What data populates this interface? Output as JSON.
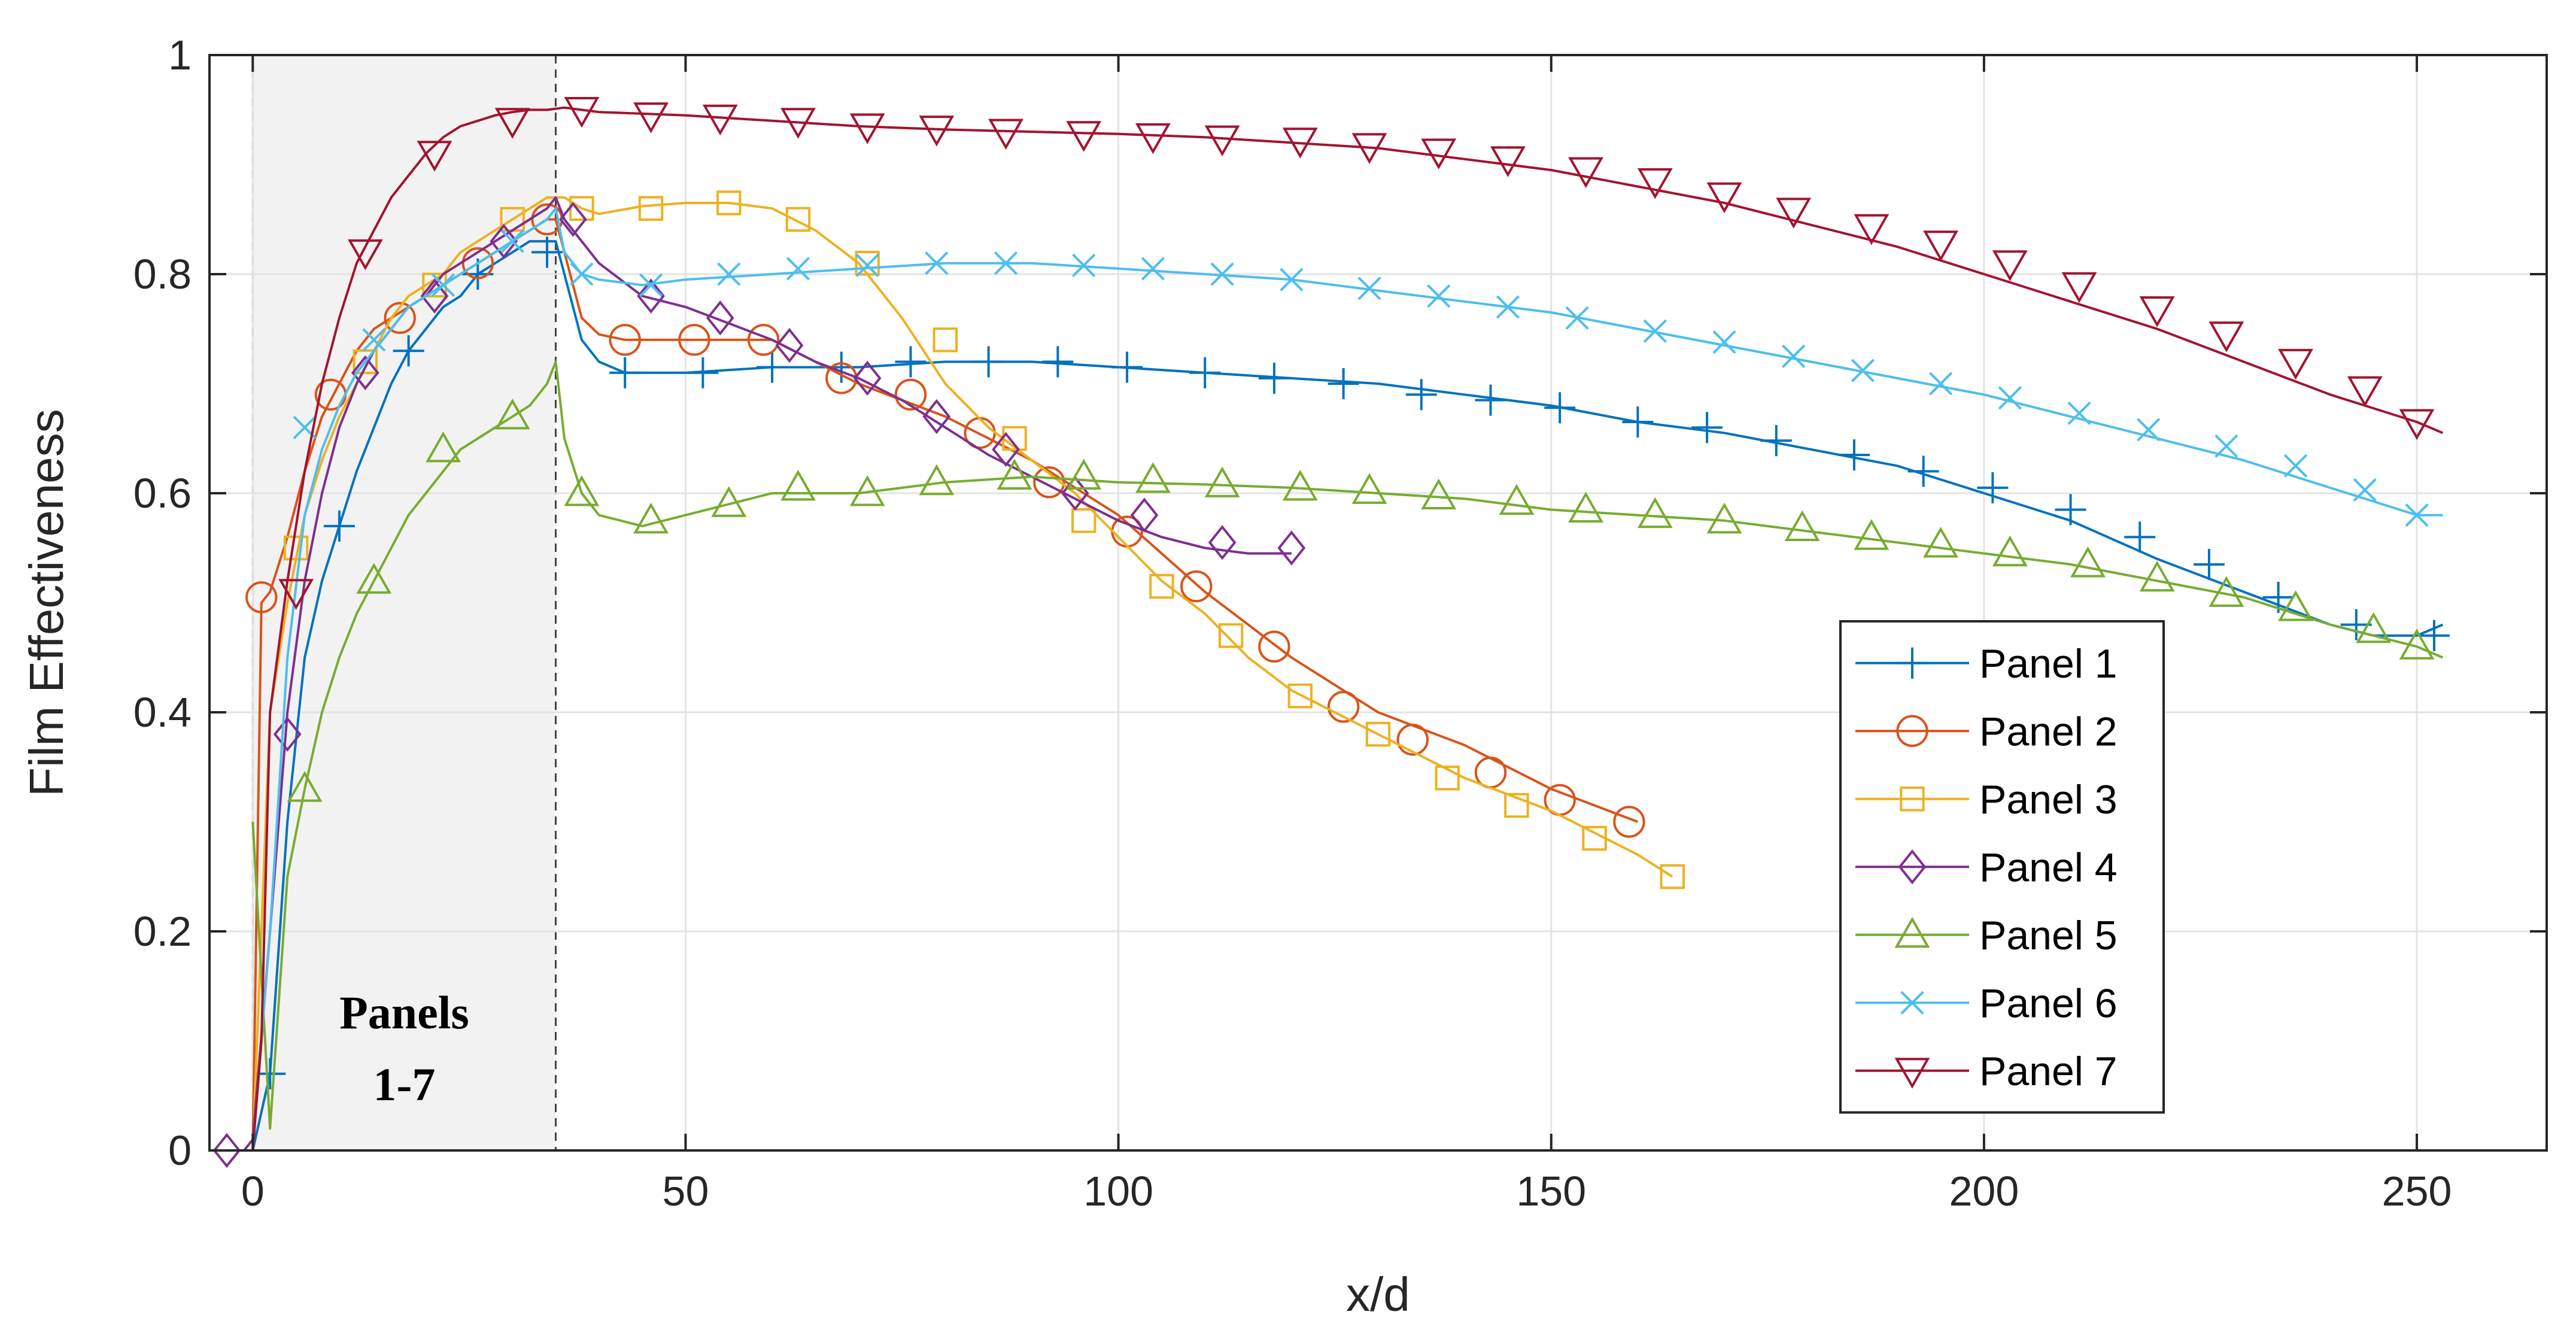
{
  "chart_data": {
    "type": "line",
    "title": "",
    "xlabel": "x/d",
    "ylabel": "Film Effectiveness",
    "xlim": [
      -5,
      265
    ],
    "ylim": [
      0,
      1
    ],
    "xticks": [
      0,
      50,
      100,
      150,
      200,
      250
    ],
    "yticks": [
      0,
      0.2,
      0.4,
      0.6,
      0.8,
      1
    ],
    "xtick_labels": [
      "0",
      "50",
      "100",
      "150",
      "200",
      "250"
    ],
    "ytick_labels": [
      "0",
      "0.2",
      "0.4",
      "0.6",
      "0.8",
      "1"
    ],
    "grid": true,
    "legend_position": "lower-right",
    "shaded_region": {
      "x_start": 0,
      "x_end": 35,
      "label_line1": "Panels",
      "label_line2": "1-7"
    },
    "series": [
      {
        "name": "Panel 1",
        "color": "#0072BD",
        "marker": "plus",
        "x": [
          0,
          2,
          4,
          6,
          8,
          10,
          12,
          14,
          16,
          18,
          20,
          22,
          24,
          26,
          28,
          30,
          32,
          34,
          35,
          36,
          38,
          40,
          43,
          50,
          60,
          70,
          80,
          90,
          100,
          110,
          120,
          130,
          140,
          150,
          160,
          170,
          180,
          190,
          200,
          210,
          220,
          230,
          240,
          245,
          250,
          253
        ],
        "y": [
          0,
          0.07,
          0.3,
          0.45,
          0.52,
          0.57,
          0.62,
          0.66,
          0.7,
          0.73,
          0.75,
          0.77,
          0.78,
          0.8,
          0.81,
          0.82,
          0.83,
          0.83,
          0.83,
          0.8,
          0.74,
          0.72,
          0.71,
          0.71,
          0.715,
          0.715,
          0.72,
          0.72,
          0.715,
          0.71,
          0.705,
          0.7,
          0.69,
          0.68,
          0.665,
          0.655,
          0.64,
          0.625,
          0.6,
          0.575,
          0.54,
          0.51,
          0.48,
          0.47,
          0.47,
          0.48
        ],
        "markers_x": [
          2,
          10,
          18,
          26,
          34,
          43,
          52,
          60,
          68,
          76,
          85,
          93,
          101,
          110,
          118,
          126,
          135,
          143,
          151,
          160,
          168,
          176,
          185,
          193,
          201,
          210,
          218,
          226,
          234,
          243,
          252
        ],
        "markers_y": [
          0.07,
          0.57,
          0.73,
          0.8,
          0.82,
          0.71,
          0.71,
          0.715,
          0.715,
          0.72,
          0.72,
          0.72,
          0.715,
          0.71,
          0.705,
          0.7,
          0.69,
          0.685,
          0.678,
          0.665,
          0.66,
          0.648,
          0.635,
          0.62,
          0.605,
          0.585,
          0.56,
          0.535,
          0.505,
          0.48,
          0.47
        ]
      },
      {
        "name": "Panel 2",
        "color": "#D95319",
        "marker": "circle",
        "x": [
          0,
          1,
          2,
          4,
          6,
          8,
          10,
          12,
          14,
          16,
          18,
          20,
          22,
          24,
          26,
          28,
          30,
          32,
          34,
          35,
          36,
          38,
          40,
          43,
          50,
          60,
          70,
          80,
          90,
          100,
          110,
          120,
          130,
          140,
          150,
          160
        ],
        "y": [
          0,
          0.5,
          0.51,
          0.56,
          0.62,
          0.67,
          0.7,
          0.73,
          0.75,
          0.76,
          0.77,
          0.78,
          0.79,
          0.8,
          0.81,
          0.82,
          0.83,
          0.84,
          0.85,
          0.85,
          0.82,
          0.76,
          0.745,
          0.74,
          0.74,
          0.74,
          0.7,
          0.67,
          0.63,
          0.58,
          0.51,
          0.45,
          0.4,
          0.37,
          0.33,
          0.3
        ],
        "markers_x": [
          1,
          9,
          17,
          26,
          34,
          43,
          51,
          59,
          68,
          76,
          84,
          92,
          101,
          109,
          118,
          126,
          134,
          143,
          151,
          159
        ],
        "markers_y": [
          0.505,
          0.69,
          0.76,
          0.81,
          0.85,
          0.74,
          0.74,
          0.74,
          0.705,
          0.69,
          0.655,
          0.61,
          0.565,
          0.515,
          0.46,
          0.405,
          0.375,
          0.345,
          0.32,
          0.3
        ]
      },
      {
        "name": "Panel 3",
        "color": "#EDB120",
        "marker": "square",
        "x": [
          0,
          2,
          4,
          6,
          8,
          10,
          12,
          14,
          16,
          18,
          20,
          22,
          24,
          26,
          28,
          30,
          32,
          34,
          36,
          38,
          40,
          45,
          50,
          55,
          60,
          65,
          70,
          75,
          80,
          85,
          90,
          95,
          100,
          105,
          110,
          115,
          120,
          130,
          140,
          150,
          160,
          164
        ],
        "y": [
          0,
          0.4,
          0.5,
          0.58,
          0.63,
          0.67,
          0.7,
          0.73,
          0.76,
          0.78,
          0.79,
          0.8,
          0.82,
          0.83,
          0.84,
          0.85,
          0.86,
          0.87,
          0.87,
          0.86,
          0.855,
          0.862,
          0.865,
          0.865,
          0.86,
          0.84,
          0.81,
          0.76,
          0.7,
          0.66,
          0.63,
          0.6,
          0.56,
          0.52,
          0.49,
          0.45,
          0.42,
          0.38,
          0.34,
          0.31,
          0.27,
          0.25
        ],
        "markers_x": [
          5,
          13,
          21,
          30,
          38,
          46,
          55,
          63,
          71,
          80,
          88,
          96,
          105,
          113,
          121,
          130,
          138,
          146,
          155,
          164
        ],
        "markers_y": [
          0.55,
          0.72,
          0.79,
          0.85,
          0.86,
          0.86,
          0.865,
          0.85,
          0.81,
          0.74,
          0.65,
          0.575,
          0.515,
          0.47,
          0.415,
          0.38,
          0.34,
          0.315,
          0.285,
          0.25
        ]
      },
      {
        "name": "Panel 4",
        "color": "#7E2F8E",
        "marker": "diamond",
        "x": [
          -3,
          -1,
          0,
          2,
          4,
          6,
          8,
          10,
          12,
          14,
          16,
          18,
          20,
          22,
          24,
          26,
          28,
          30,
          32,
          34,
          35,
          36,
          38,
          40,
          45,
          50,
          55,
          60,
          65,
          70,
          75,
          80,
          85,
          90,
          95,
          100,
          105,
          110,
          115,
          120
        ],
        "y": [
          0,
          0,
          0.01,
          0.2,
          0.4,
          0.52,
          0.6,
          0.66,
          0.7,
          0.73,
          0.75,
          0.77,
          0.78,
          0.8,
          0.81,
          0.82,
          0.83,
          0.84,
          0.85,
          0.86,
          0.87,
          0.85,
          0.83,
          0.81,
          0.78,
          0.77,
          0.755,
          0.74,
          0.72,
          0.705,
          0.685,
          0.66,
          0.635,
          0.615,
          0.595,
          0.575,
          0.56,
          0.55,
          0.545,
          0.545
        ],
        "markers_x": [
          -3,
          4,
          13,
          21,
          29,
          37,
          46,
          54,
          62,
          71,
          79,
          87,
          95,
          103,
          112,
          120
        ],
        "markers_y": [
          0,
          0.38,
          0.71,
          0.78,
          0.83,
          0.85,
          0.78,
          0.76,
          0.735,
          0.705,
          0.67,
          0.64,
          0.6,
          0.58,
          0.555,
          0.55
        ]
      },
      {
        "name": "Panel 5",
        "color": "#77AC30",
        "marker": "triangle-up",
        "x": [
          0,
          2,
          4,
          6,
          8,
          10,
          12,
          14,
          16,
          18,
          20,
          22,
          24,
          26,
          28,
          30,
          32,
          34,
          35,
          36,
          38,
          40,
          45,
          50,
          60,
          70,
          80,
          90,
          100,
          110,
          120,
          130,
          140,
          150,
          160,
          170,
          180,
          190,
          200,
          210,
          220,
          230,
          240,
          250,
          253
        ],
        "y": [
          0.3,
          0.02,
          0.25,
          0.33,
          0.4,
          0.45,
          0.49,
          0.52,
          0.55,
          0.58,
          0.6,
          0.62,
          0.64,
          0.65,
          0.66,
          0.67,
          0.68,
          0.7,
          0.72,
          0.65,
          0.6,
          0.58,
          0.57,
          0.58,
          0.6,
          0.6,
          0.61,
          0.615,
          0.61,
          0.608,
          0.605,
          0.6,
          0.595,
          0.585,
          0.58,
          0.575,
          0.565,
          0.555,
          0.545,
          0.535,
          0.52,
          0.505,
          0.48,
          0.46,
          0.45
        ],
        "markers_x": [
          6,
          14,
          22,
          30,
          38,
          46,
          55,
          63,
          71,
          79,
          88,
          96,
          104,
          112,
          121,
          129,
          137,
          146,
          154,
          162,
          170,
          179,
          187,
          195,
          203,
          212,
          220,
          228,
          236,
          245,
          250
        ],
        "markers_y": [
          0.33,
          0.52,
          0.64,
          0.67,
          0.6,
          0.575,
          0.59,
          0.605,
          0.6,
          0.61,
          0.615,
          0.615,
          0.612,
          0.608,
          0.605,
          0.602,
          0.597,
          0.592,
          0.585,
          0.58,
          0.575,
          0.568,
          0.56,
          0.553,
          0.545,
          0.535,
          0.522,
          0.508,
          0.495,
          0.475,
          0.46
        ]
      },
      {
        "name": "Panel 6",
        "color": "#4DBEEE",
        "marker": "cross",
        "x": [
          0,
          2,
          4,
          6,
          8,
          10,
          12,
          14,
          16,
          18,
          20,
          22,
          24,
          26,
          28,
          30,
          32,
          34,
          35,
          36,
          38,
          40,
          45,
          50,
          60,
          70,
          80,
          90,
          100,
          110,
          120,
          130,
          140,
          150,
          160,
          170,
          180,
          190,
          200,
          210,
          220,
          230,
          240,
          250,
          253
        ],
        "y": [
          0,
          0.2,
          0.45,
          0.58,
          0.64,
          0.68,
          0.71,
          0.73,
          0.75,
          0.77,
          0.78,
          0.79,
          0.8,
          0.81,
          0.82,
          0.83,
          0.84,
          0.85,
          0.86,
          0.82,
          0.8,
          0.795,
          0.79,
          0.795,
          0.8,
          0.805,
          0.81,
          0.81,
          0.805,
          0.8,
          0.795,
          0.785,
          0.775,
          0.765,
          0.75,
          0.735,
          0.72,
          0.705,
          0.69,
          0.67,
          0.65,
          0.63,
          0.605,
          0.58,
          0.58
        ],
        "markers_x": [
          6,
          14,
          22,
          30,
          38,
          46,
          55,
          63,
          71,
          79,
          87,
          96,
          104,
          112,
          120,
          129,
          137,
          145,
          153,
          162,
          170,
          178,
          186,
          195,
          203,
          211,
          219,
          228,
          236,
          244,
          250
        ],
        "markers_y": [
          0.66,
          0.74,
          0.79,
          0.83,
          0.8,
          0.79,
          0.8,
          0.805,
          0.808,
          0.81,
          0.81,
          0.808,
          0.805,
          0.8,
          0.795,
          0.787,
          0.78,
          0.77,
          0.76,
          0.748,
          0.738,
          0.725,
          0.712,
          0.7,
          0.687,
          0.673,
          0.658,
          0.643,
          0.625,
          0.603,
          0.58
        ]
      },
      {
        "name": "Panel 7",
        "color": "#A2142F",
        "marker": "triangle-down",
        "x": [
          0,
          1,
          2,
          4,
          6,
          8,
          10,
          12,
          14,
          16,
          18,
          20,
          22,
          24,
          26,
          28,
          30,
          32,
          34,
          36,
          38,
          40,
          50,
          60,
          70,
          80,
          90,
          100,
          110,
          120,
          130,
          140,
          150,
          160,
          170,
          180,
          190,
          200,
          210,
          220,
          230,
          240,
          250,
          253
        ],
        "y": [
          0,
          0.1,
          0.4,
          0.52,
          0.62,
          0.7,
          0.76,
          0.81,
          0.84,
          0.87,
          0.89,
          0.91,
          0.925,
          0.935,
          0.94,
          0.945,
          0.948,
          0.95,
          0.95,
          0.952,
          0.95,
          0.948,
          0.945,
          0.94,
          0.935,
          0.932,
          0.93,
          0.928,
          0.925,
          0.92,
          0.915,
          0.905,
          0.895,
          0.88,
          0.865,
          0.845,
          0.825,
          0.8,
          0.775,
          0.75,
          0.72,
          0.69,
          0.665,
          0.655
        ],
        "markers_x": [
          5,
          13,
          21,
          30,
          38,
          46,
          54,
          63,
          71,
          79,
          87,
          96,
          104,
          112,
          121,
          129,
          137,
          145,
          154,
          162,
          170,
          178,
          187,
          195,
          203,
          211,
          220,
          228,
          236,
          244,
          250
        ],
        "markers_y": [
          0.51,
          0.82,
          0.91,
          0.94,
          0.95,
          0.945,
          0.943,
          0.94,
          0.935,
          0.933,
          0.93,
          0.928,
          0.926,
          0.924,
          0.922,
          0.917,
          0.912,
          0.905,
          0.895,
          0.885,
          0.872,
          0.858,
          0.843,
          0.828,
          0.81,
          0.79,
          0.768,
          0.745,
          0.72,
          0.695,
          0.665
        ]
      }
    ]
  }
}
